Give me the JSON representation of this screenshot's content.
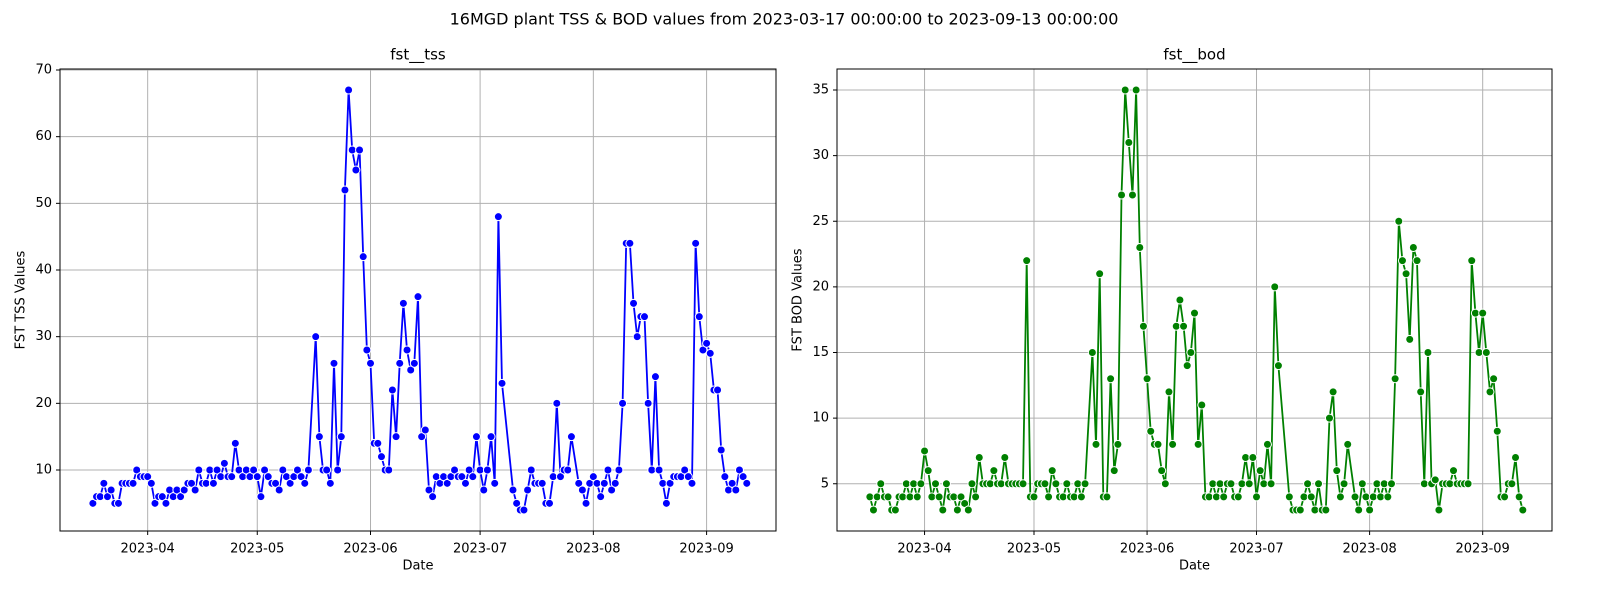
{
  "title": "16MGD plant TSS & BOD values from 2023-03-17 00:00:00 to 2023-09-13 00:00:00",
  "chart_data": [
    {
      "type": "line",
      "title": "fst__tss",
      "xlabel": "Date",
      "ylabel": "FST TSS Values",
      "color": "#0000ff",
      "marker": "circle",
      "grid": true,
      "x": [
        "2023-03-17",
        "2023-03-18",
        "2023-03-19",
        "2023-03-20",
        "2023-03-21",
        "2023-03-22",
        "2023-03-23",
        "2023-03-24",
        "2023-03-25",
        "2023-03-26",
        "2023-03-27",
        "2023-03-28",
        "2023-03-29",
        "2023-03-30",
        "2023-03-31",
        "2023-04-01",
        "2023-04-02",
        "2023-04-03",
        "2023-04-04",
        "2023-04-05",
        "2023-04-06",
        "2023-04-07",
        "2023-04-08",
        "2023-04-09",
        "2023-04-10",
        "2023-04-11",
        "2023-04-12",
        "2023-04-13",
        "2023-04-14",
        "2023-04-15",
        "2023-04-16",
        "2023-04-17",
        "2023-04-18",
        "2023-04-19",
        "2023-04-20",
        "2023-04-21",
        "2023-04-22",
        "2023-04-23",
        "2023-04-24",
        "2023-04-25",
        "2023-04-26",
        "2023-04-27",
        "2023-04-28",
        "2023-04-29",
        "2023-04-30",
        "2023-05-01",
        "2023-05-02",
        "2023-05-03",
        "2023-05-04",
        "2023-05-05",
        "2023-05-06",
        "2023-05-07",
        "2023-05-08",
        "2023-05-09",
        "2023-05-10",
        "2023-05-11",
        "2023-05-12",
        "2023-05-13",
        "2023-05-14",
        "2023-05-15",
        "2023-05-17",
        "2023-05-18",
        "2023-05-19",
        "2023-05-20",
        "2023-05-21",
        "2023-05-22",
        "2023-05-23",
        "2023-05-24",
        "2023-05-25",
        "2023-05-26",
        "2023-05-27",
        "2023-05-28",
        "2023-05-29",
        "2023-05-30",
        "2023-05-31",
        "2023-06-01",
        "2023-06-02",
        "2023-06-03",
        "2023-06-04",
        "2023-06-05",
        "2023-06-06",
        "2023-06-07",
        "2023-06-08",
        "2023-06-09",
        "2023-06-10",
        "2023-06-11",
        "2023-06-12",
        "2023-06-13",
        "2023-06-14",
        "2023-06-15",
        "2023-06-16",
        "2023-06-17",
        "2023-06-18",
        "2023-06-19",
        "2023-06-20",
        "2023-06-21",
        "2023-06-22",
        "2023-06-23",
        "2023-06-24",
        "2023-06-25",
        "2023-06-26",
        "2023-06-27",
        "2023-06-28",
        "2023-06-29",
        "2023-06-30",
        "2023-07-01",
        "2023-07-02",
        "2023-07-03",
        "2023-07-04",
        "2023-07-05",
        "2023-07-06",
        "2023-07-07",
        "2023-07-10",
        "2023-07-11",
        "2023-07-12",
        "2023-07-13",
        "2023-07-14",
        "2023-07-15",
        "2023-07-16",
        "2023-07-17",
        "2023-07-18",
        "2023-07-19",
        "2023-07-20",
        "2023-07-21",
        "2023-07-22",
        "2023-07-23",
        "2023-07-24",
        "2023-07-25",
        "2023-07-26",
        "2023-07-28",
        "2023-07-29",
        "2023-07-30",
        "2023-07-31",
        "2023-08-01",
        "2023-08-02",
        "2023-08-03",
        "2023-08-04",
        "2023-08-05",
        "2023-08-06",
        "2023-08-07",
        "2023-08-08",
        "2023-08-09",
        "2023-08-10",
        "2023-08-11",
        "2023-08-12",
        "2023-08-13",
        "2023-08-14",
        "2023-08-15",
        "2023-08-16",
        "2023-08-17",
        "2023-08-18",
        "2023-08-19",
        "2023-08-20",
        "2023-08-21",
        "2023-08-22",
        "2023-08-23",
        "2023-08-24",
        "2023-08-25",
        "2023-08-26",
        "2023-08-27",
        "2023-08-28",
        "2023-08-29",
        "2023-08-30",
        "2023-08-31",
        "2023-09-01",
        "2023-09-02",
        "2023-09-03",
        "2023-09-04",
        "2023-09-05",
        "2023-09-06",
        "2023-09-07",
        "2023-09-08",
        "2023-09-09",
        "2023-09-10",
        "2023-09-11",
        "2023-09-12"
      ],
      "values": [
        5,
        6,
        6,
        8,
        6,
        7,
        5,
        5,
        8,
        8,
        8,
        8,
        10,
        9,
        9,
        9,
        8,
        5,
        6,
        6,
        5,
        7,
        6,
        7,
        6,
        7,
        8,
        8,
        7,
        10,
        8,
        8,
        10,
        8,
        10,
        9,
        11,
        9,
        9,
        14,
        10,
        9,
        10,
        9,
        10,
        9,
        6,
        10,
        9,
        8,
        8,
        7,
        10,
        9,
        8,
        9,
        10,
        9,
        8,
        10,
        30,
        15,
        10,
        10,
        8,
        26,
        10,
        15,
        52,
        67,
        58,
        55,
        58,
        42,
        28,
        26,
        14,
        14,
        12,
        10,
        10,
        22,
        15,
        26,
        35,
        28,
        25,
        26,
        36,
        15,
        16,
        7,
        6,
        9,
        8,
        9,
        8,
        9,
        10,
        9,
        9,
        8,
        10,
        9,
        15,
        10,
        7,
        10,
        15,
        8,
        48,
        23,
        7,
        5,
        4,
        4,
        7,
        10,
        8,
        8,
        8,
        5,
        5,
        9,
        20,
        9,
        10,
        10,
        15,
        8,
        7,
        5,
        8,
        9,
        8,
        6,
        8,
        10,
        7,
        8,
        10,
        20,
        44,
        44,
        35,
        30,
        33,
        33,
        20,
        10,
        24,
        10,
        8,
        5,
        8,
        9,
        9,
        9,
        10,
        9,
        8,
        44,
        33,
        28,
        29,
        27.5,
        22,
        22,
        13,
        9,
        7,
        8,
        7,
        10,
        9,
        8
      ],
      "xlim": [
        "2023-03-08",
        "2023-09-20"
      ],
      "xticks": [
        {
          "value": "2023-04-01",
          "label": "2023-04"
        },
        {
          "value": "2023-05-01",
          "label": "2023-05"
        },
        {
          "value": "2023-06-01",
          "label": "2023-06"
        },
        {
          "value": "2023-07-01",
          "label": "2023-07"
        },
        {
          "value": "2023-08-01",
          "label": "2023-08"
        },
        {
          "value": "2023-09-01",
          "label": "2023-09"
        }
      ],
      "ylim": [
        0.85,
        70.15
      ],
      "yticks": [
        10,
        20,
        30,
        40,
        50,
        60,
        70
      ]
    },
    {
      "type": "line",
      "title": "fst__bod",
      "xlabel": "Date",
      "ylabel": "FST BOD Values",
      "color": "#008000",
      "marker": "circle",
      "grid": true,
      "x": [
        "2023-03-17",
        "2023-03-18",
        "2023-03-19",
        "2023-03-20",
        "2023-03-21",
        "2023-03-22",
        "2023-03-23",
        "2023-03-24",
        "2023-03-25",
        "2023-03-26",
        "2023-03-27",
        "2023-03-28",
        "2023-03-29",
        "2023-03-30",
        "2023-03-31",
        "2023-04-01",
        "2023-04-02",
        "2023-04-03",
        "2023-04-04",
        "2023-04-05",
        "2023-04-06",
        "2023-04-07",
        "2023-04-08",
        "2023-04-09",
        "2023-04-10",
        "2023-04-11",
        "2023-04-12",
        "2023-04-13",
        "2023-04-14",
        "2023-04-15",
        "2023-04-16",
        "2023-04-17",
        "2023-04-18",
        "2023-04-19",
        "2023-04-20",
        "2023-04-21",
        "2023-04-22",
        "2023-04-23",
        "2023-04-24",
        "2023-04-25",
        "2023-04-26",
        "2023-04-27",
        "2023-04-28",
        "2023-04-29",
        "2023-04-30",
        "2023-05-01",
        "2023-05-02",
        "2023-05-03",
        "2023-05-04",
        "2023-05-05",
        "2023-05-06",
        "2023-05-07",
        "2023-05-08",
        "2023-05-09",
        "2023-05-10",
        "2023-05-11",
        "2023-05-12",
        "2023-05-13",
        "2023-05-14",
        "2023-05-15",
        "2023-05-17",
        "2023-05-18",
        "2023-05-19",
        "2023-05-20",
        "2023-05-21",
        "2023-05-22",
        "2023-05-23",
        "2023-05-24",
        "2023-05-25",
        "2023-05-26",
        "2023-05-27",
        "2023-05-28",
        "2023-05-29",
        "2023-05-30",
        "2023-05-31",
        "2023-06-01",
        "2023-06-02",
        "2023-06-03",
        "2023-06-04",
        "2023-06-05",
        "2023-06-06",
        "2023-06-07",
        "2023-06-08",
        "2023-06-09",
        "2023-06-10",
        "2023-06-11",
        "2023-06-12",
        "2023-06-13",
        "2023-06-14",
        "2023-06-15",
        "2023-06-16",
        "2023-06-17",
        "2023-06-18",
        "2023-06-19",
        "2023-06-20",
        "2023-06-21",
        "2023-06-22",
        "2023-06-23",
        "2023-06-24",
        "2023-06-25",
        "2023-06-26",
        "2023-06-27",
        "2023-06-28",
        "2023-06-29",
        "2023-06-30",
        "2023-07-01",
        "2023-07-02",
        "2023-07-03",
        "2023-07-04",
        "2023-07-05",
        "2023-07-06",
        "2023-07-07",
        "2023-07-10",
        "2023-07-11",
        "2023-07-12",
        "2023-07-13",
        "2023-07-14",
        "2023-07-15",
        "2023-07-16",
        "2023-07-17",
        "2023-07-18",
        "2023-07-19",
        "2023-07-20",
        "2023-07-21",
        "2023-07-22",
        "2023-07-23",
        "2023-07-24",
        "2023-07-25",
        "2023-07-26",
        "2023-07-28",
        "2023-07-29",
        "2023-07-30",
        "2023-07-31",
        "2023-08-01",
        "2023-08-02",
        "2023-08-03",
        "2023-08-04",
        "2023-08-05",
        "2023-08-06",
        "2023-08-07",
        "2023-08-08",
        "2023-08-09",
        "2023-08-10",
        "2023-08-11",
        "2023-08-12",
        "2023-08-13",
        "2023-08-14",
        "2023-08-15",
        "2023-08-16",
        "2023-08-17",
        "2023-08-18",
        "2023-08-19",
        "2023-08-20",
        "2023-08-21",
        "2023-08-22",
        "2023-08-23",
        "2023-08-24",
        "2023-08-25",
        "2023-08-26",
        "2023-08-27",
        "2023-08-28",
        "2023-08-29",
        "2023-08-30",
        "2023-08-31",
        "2023-09-01",
        "2023-09-02",
        "2023-09-03",
        "2023-09-04",
        "2023-09-05",
        "2023-09-06",
        "2023-09-07",
        "2023-09-08",
        "2023-09-09",
        "2023-09-10",
        "2023-09-11",
        "2023-09-12"
      ],
      "values": [
        4,
        3,
        4,
        5,
        4,
        4,
        3,
        3,
        4,
        4,
        5,
        4,
        5,
        4,
        5,
        7.5,
        6,
        4,
        5,
        4,
        3,
        5,
        4,
        4,
        3,
        4,
        3.5,
        3,
        5,
        4,
        7,
        5,
        5,
        5,
        6,
        5,
        5,
        7,
        5,
        5,
        5,
        5,
        5,
        22,
        4,
        4,
        5,
        5,
        5,
        4,
        6,
        5,
        4,
        4,
        5,
        4,
        4,
        5,
        4,
        5,
        15,
        8,
        21,
        4,
        4,
        13,
        6,
        8,
        27,
        35,
        31,
        27,
        35,
        23,
        17,
        13,
        9,
        8,
        8,
        6,
        5,
        12,
        8,
        17,
        19,
        17,
        14,
        15,
        18,
        8,
        11,
        4,
        4,
        5,
        4,
        5,
        4,
        5,
        5,
        4,
        4,
        5,
        7,
        5,
        7,
        4,
        6,
        5,
        8,
        5,
        20,
        14,
        4,
        3,
        3,
        3,
        4,
        5,
        4,
        3,
        5,
        3,
        3,
        10,
        12,
        6,
        4,
        5,
        8,
        4,
        3,
        5,
        4,
        3,
        4,
        5,
        4,
        5,
        4,
        5,
        13,
        25,
        22,
        21,
        16,
        23,
        22,
        12,
        5,
        15,
        5,
        5.3,
        3,
        5,
        5,
        5,
        6,
        5,
        5,
        5,
        5,
        22,
        18,
        15,
        18,
        15,
        12,
        13,
        9,
        4,
        4,
        5,
        5,
        7,
        4,
        3
      ],
      "xlim": [
        "2023-03-08",
        "2023-09-20"
      ],
      "xticks": [
        {
          "value": "2023-04-01",
          "label": "2023-04"
        },
        {
          "value": "2023-05-01",
          "label": "2023-05"
        },
        {
          "value": "2023-06-01",
          "label": "2023-06"
        },
        {
          "value": "2023-07-01",
          "label": "2023-07"
        },
        {
          "value": "2023-08-01",
          "label": "2023-08"
        },
        {
          "value": "2023-09-01",
          "label": "2023-09"
        }
      ],
      "ylim": [
        1.4,
        36.6
      ],
      "yticks": [
        5,
        10,
        15,
        20,
        25,
        30,
        35
      ]
    }
  ]
}
